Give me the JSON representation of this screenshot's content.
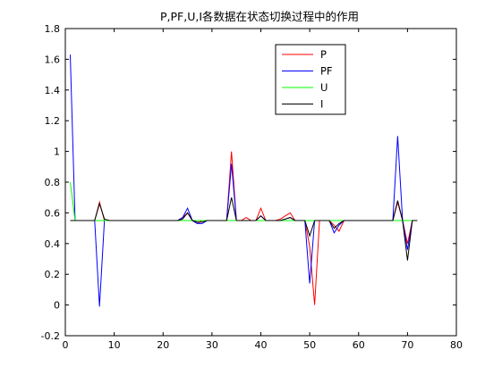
{
  "chart_data": {
    "type": "line",
    "title": "P,PF,U,I各数据在状态切换过程中的作用",
    "xlabel": "",
    "ylabel": "",
    "xlim": [
      0,
      80
    ],
    "ylim": [
      -0.2,
      1.8
    ],
    "xticks": [
      0,
      10,
      20,
      30,
      40,
      50,
      60,
      70,
      80
    ],
    "xtick_labels": [
      "0",
      "10",
      "20",
      "30",
      "40",
      "50",
      "60",
      "70",
      "80"
    ],
    "yticks": [
      -0.2,
      0,
      0.2,
      0.4,
      0.6,
      0.8,
      1,
      1.2,
      1.4,
      1.6,
      1.8
    ],
    "ytick_labels": [
      "-0.2",
      "0",
      "0.2",
      "0.4",
      "0.6",
      "0.8",
      "1",
      "1.2",
      "1.4",
      "1.6",
      "1.8"
    ],
    "grid": false,
    "legend_position": "top-right",
    "series": [
      {
        "name": "P",
        "color": "#ff0000",
        "x": [
          1,
          2,
          3,
          4,
          5,
          6,
          7,
          8,
          9,
          10,
          11,
          12,
          13,
          14,
          15,
          16,
          17,
          18,
          19,
          20,
          21,
          22,
          23,
          24,
          25,
          26,
          27,
          28,
          29,
          30,
          31,
          32,
          33,
          34,
          35,
          36,
          37,
          38,
          39,
          40,
          41,
          42,
          43,
          44,
          45,
          46,
          47,
          48,
          49,
          50,
          51,
          52,
          53,
          54,
          55,
          56,
          57,
          58,
          59,
          60,
          61,
          62,
          63,
          64,
          65,
          66,
          67,
          68,
          69,
          70,
          71,
          72
        ],
        "y": [
          0.55,
          0.55,
          0.55,
          0.55,
          0.55,
          0.55,
          0.67,
          0.55,
          0.55,
          0.55,
          0.55,
          0.55,
          0.55,
          0.55,
          0.55,
          0.55,
          0.55,
          0.55,
          0.55,
          0.55,
          0.55,
          0.55,
          0.55,
          0.57,
          0.6,
          0.55,
          0.53,
          0.55,
          0.55,
          0.55,
          0.55,
          0.55,
          0.55,
          1.0,
          0.55,
          0.55,
          0.57,
          0.55,
          0.55,
          0.63,
          0.55,
          0.55,
          0.55,
          0.56,
          0.58,
          0.6,
          0.55,
          0.55,
          0.55,
          0.38,
          0.0,
          0.55,
          0.55,
          0.55,
          0.52,
          0.48,
          0.55,
          0.55,
          0.55,
          0.55,
          0.55,
          0.55,
          0.55,
          0.55,
          0.55,
          0.55,
          0.55,
          0.67,
          0.55,
          0.4,
          0.55,
          0.55
        ]
      },
      {
        "name": "PF",
        "color": "#0000ff",
        "x": [
          1,
          2,
          3,
          4,
          5,
          6,
          7,
          8,
          9,
          10,
          11,
          12,
          13,
          14,
          15,
          16,
          17,
          18,
          19,
          20,
          21,
          22,
          23,
          24,
          25,
          26,
          27,
          28,
          29,
          30,
          31,
          32,
          33,
          34,
          35,
          36,
          37,
          38,
          39,
          40,
          41,
          42,
          43,
          44,
          45,
          46,
          47,
          48,
          49,
          50,
          51,
          52,
          53,
          54,
          55,
          56,
          57,
          58,
          59,
          60,
          61,
          62,
          63,
          64,
          65,
          66,
          67,
          68,
          69,
          70,
          71,
          72
        ],
        "y": [
          1.63,
          0.55,
          0.55,
          0.55,
          0.55,
          0.55,
          -0.01,
          0.55,
          0.55,
          0.55,
          0.55,
          0.55,
          0.55,
          0.55,
          0.55,
          0.55,
          0.55,
          0.55,
          0.55,
          0.55,
          0.55,
          0.55,
          0.55,
          0.57,
          0.63,
          0.55,
          0.53,
          0.53,
          0.55,
          0.55,
          0.55,
          0.55,
          0.55,
          0.92,
          0.55,
          0.55,
          0.55,
          0.55,
          0.55,
          0.58,
          0.55,
          0.55,
          0.55,
          0.55,
          0.56,
          0.57,
          0.55,
          0.55,
          0.55,
          0.14,
          0.55,
          0.55,
          0.55,
          0.55,
          0.47,
          0.52,
          0.55,
          0.55,
          0.55,
          0.55,
          0.55,
          0.55,
          0.55,
          0.55,
          0.55,
          0.55,
          0.55,
          1.1,
          0.55,
          0.36,
          0.55,
          0.55
        ]
      },
      {
        "name": "U",
        "color": "#00ff00",
        "x": [
          1,
          2,
          3,
          4,
          5,
          6,
          7,
          8,
          9,
          10,
          11,
          12,
          13,
          14,
          15,
          16,
          17,
          18,
          19,
          20,
          21,
          22,
          23,
          24,
          25,
          26,
          27,
          28,
          29,
          30,
          31,
          32,
          33,
          34,
          35,
          36,
          37,
          38,
          39,
          40,
          41,
          42,
          43,
          44,
          45,
          46,
          47,
          48,
          49,
          50,
          51,
          52,
          53,
          54,
          55,
          56,
          57,
          58,
          59,
          60,
          61,
          62,
          63,
          64,
          65,
          66,
          67,
          68,
          69,
          70,
          71,
          72
        ],
        "y": [
          0.8,
          0.55,
          0.55,
          0.55,
          0.55,
          0.55,
          0.55,
          0.55,
          0.55,
          0.55,
          0.55,
          0.55,
          0.55,
          0.55,
          0.55,
          0.55,
          0.55,
          0.55,
          0.55,
          0.55,
          0.55,
          0.55,
          0.55,
          0.55,
          0.55,
          0.55,
          0.55,
          0.55,
          0.55,
          0.55,
          0.55,
          0.55,
          0.55,
          0.55,
          0.55,
          0.55,
          0.55,
          0.55,
          0.55,
          0.55,
          0.55,
          0.55,
          0.55,
          0.55,
          0.55,
          0.55,
          0.55,
          0.55,
          0.55,
          0.55,
          0.55,
          0.55,
          0.55,
          0.55,
          0.55,
          0.55,
          0.55,
          0.55,
          0.55,
          0.55,
          0.55,
          0.55,
          0.55,
          0.55,
          0.55,
          0.55,
          0.55,
          0.55,
          0.55,
          0.55,
          0.55,
          0.55
        ]
      },
      {
        "name": "I",
        "color": "#000000",
        "x": [
          1,
          2,
          3,
          4,
          5,
          6,
          7,
          8,
          9,
          10,
          11,
          12,
          13,
          14,
          15,
          16,
          17,
          18,
          19,
          20,
          21,
          22,
          23,
          24,
          25,
          26,
          27,
          28,
          29,
          30,
          31,
          32,
          33,
          34,
          35,
          36,
          37,
          38,
          39,
          40,
          41,
          42,
          43,
          44,
          45,
          46,
          47,
          48,
          49,
          50,
          51,
          52,
          53,
          54,
          55,
          56,
          57,
          58,
          59,
          60,
          61,
          62,
          63,
          64,
          65,
          66,
          67,
          68,
          69,
          70,
          71,
          72
        ],
        "y": [
          0.55,
          0.55,
          0.55,
          0.55,
          0.55,
          0.55,
          0.66,
          0.56,
          0.55,
          0.55,
          0.55,
          0.55,
          0.55,
          0.55,
          0.55,
          0.55,
          0.55,
          0.55,
          0.55,
          0.55,
          0.55,
          0.55,
          0.55,
          0.56,
          0.6,
          0.55,
          0.54,
          0.54,
          0.55,
          0.55,
          0.55,
          0.55,
          0.55,
          0.7,
          0.55,
          0.55,
          0.55,
          0.55,
          0.55,
          0.58,
          0.55,
          0.55,
          0.55,
          0.55,
          0.56,
          0.57,
          0.55,
          0.55,
          0.55,
          0.45,
          0.55,
          0.55,
          0.55,
          0.55,
          0.5,
          0.53,
          0.55,
          0.55,
          0.55,
          0.55,
          0.55,
          0.55,
          0.55,
          0.55,
          0.55,
          0.55,
          0.55,
          0.68,
          0.55,
          0.29,
          0.55,
          0.55
        ]
      }
    ]
  }
}
